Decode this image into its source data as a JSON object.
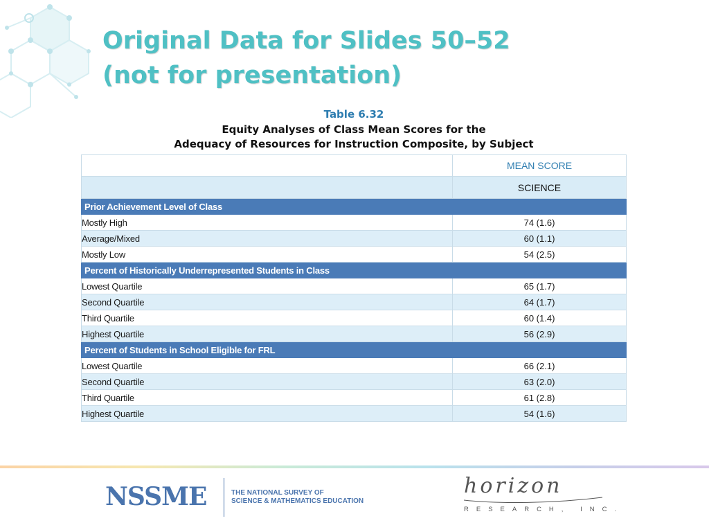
{
  "slide": {
    "title_line1": "Original Data for Slides 50–52",
    "title_line2": "(not for presentation)"
  },
  "table": {
    "number": "Table 6.32",
    "caption_line1": "Equity Analyses of Class Mean Scores for the",
    "caption_line2": "Adequacy of Resources for Instruction Composite, by Subject",
    "header_group": "MEAN SCORE",
    "header_col": "SCIENCE",
    "sections": [
      {
        "title": "Prior Achievement Level of Class",
        "rows": [
          {
            "label": "Mostly High",
            "value": "74  (1.6)"
          },
          {
            "label": "Average/Mixed",
            "value": "60  (1.1)"
          },
          {
            "label": "Mostly Low",
            "value": "54  (2.5)"
          }
        ]
      },
      {
        "title": "Percent of Historically Underrepresented Students in Class",
        "rows": [
          {
            "label": "Lowest Quartile",
            "value": "65  (1.7)"
          },
          {
            "label": "Second Quartile",
            "value": "64  (1.7)"
          },
          {
            "label": "Third Quartile",
            "value": "60  (1.4)"
          },
          {
            "label": "Highest Quartile",
            "value": "56  (2.9)"
          }
        ]
      },
      {
        "title": "Percent of Students in School Eligible for FRL",
        "rows": [
          {
            "label": "Lowest Quartile",
            "value": "66  (2.1)"
          },
          {
            "label": "Second Quartile",
            "value": "63  (2.0)"
          },
          {
            "label": "Third Quartile",
            "value": "61  (2.8)"
          },
          {
            "label": "Highest Quartile",
            "value": "54  (1.6)"
          }
        ]
      }
    ]
  },
  "footer": {
    "nssme_logo": "NSSME",
    "nssme_sub1": "THE NATIONAL SURVEY OF",
    "nssme_sub2": "SCIENCE & MATHEMATICS EDUCATION",
    "horizon_logo": "horizon",
    "horizon_sub": "RESEARCH, INC."
  },
  "colors": {
    "title": "#4fc0c4",
    "section_header": "#4a7bb7",
    "row_alt": "#ddeef8",
    "brand_blue": "#4a74ad"
  }
}
